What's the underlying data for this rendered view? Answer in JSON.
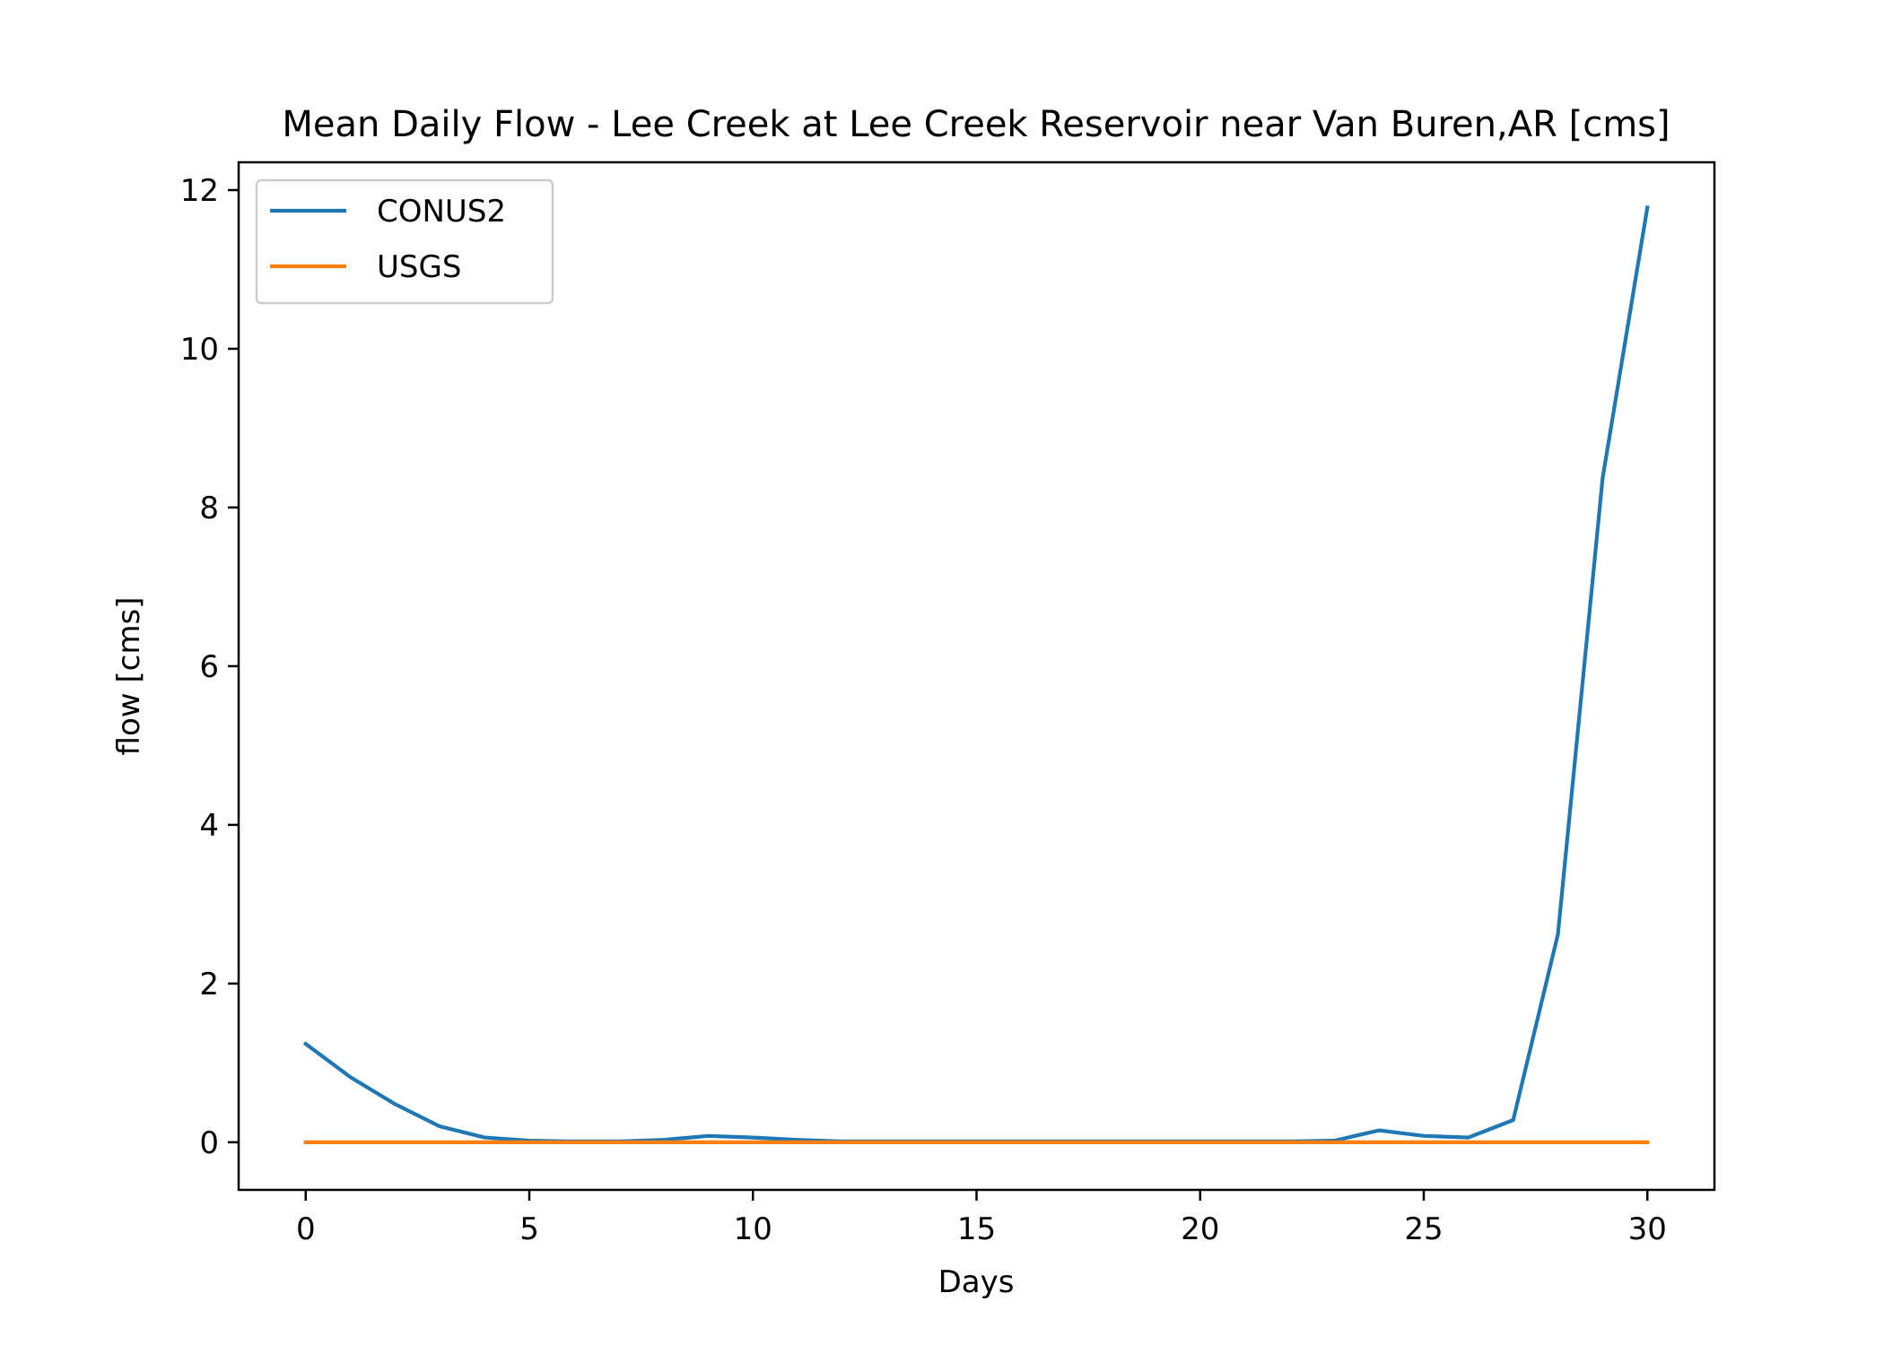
{
  "chart_data": {
    "type": "line",
    "title": "Mean Daily Flow - Lee Creek at Lee Creek Reservoir near Van Buren,AR [cms]",
    "xlabel": "Days",
    "ylabel": "flow [cms]",
    "xlim": [
      -1.5,
      31.5
    ],
    "ylim": [
      -0.6,
      12.35
    ],
    "xticks": [
      0,
      5,
      10,
      15,
      20,
      25,
      30
    ],
    "yticks": [
      0,
      2,
      4,
      6,
      8,
      10,
      12
    ],
    "grid": false,
    "legend_position": "upper-left",
    "x": [
      0,
      1,
      2,
      3,
      4,
      5,
      6,
      7,
      8,
      9,
      10,
      11,
      12,
      13,
      14,
      15,
      16,
      17,
      18,
      19,
      20,
      21,
      22,
      23,
      24,
      25,
      26,
      27,
      28,
      29,
      30
    ],
    "series": [
      {
        "name": "CONUS2",
        "color": "#1f77b4",
        "values": [
          1.24,
          0.82,
          0.48,
          0.2,
          0.06,
          0.02,
          0.01,
          0.01,
          0.03,
          0.08,
          0.06,
          0.03,
          0.01,
          0.01,
          0.01,
          0.01,
          0.01,
          0.01,
          0.01,
          0.01,
          0.01,
          0.01,
          0.01,
          0.02,
          0.15,
          0.08,
          0.06,
          0.28,
          2.62,
          8.37,
          11.78
        ]
      },
      {
        "name": "USGS",
        "color": "#ff7f0e",
        "values": [
          0,
          0,
          0,
          0,
          0,
          0,
          0,
          0,
          0,
          0,
          0,
          0,
          0,
          0,
          0,
          0,
          0,
          0,
          0,
          0,
          0,
          0,
          0,
          0,
          0,
          0,
          0,
          0,
          0,
          0,
          0
        ]
      }
    ]
  }
}
